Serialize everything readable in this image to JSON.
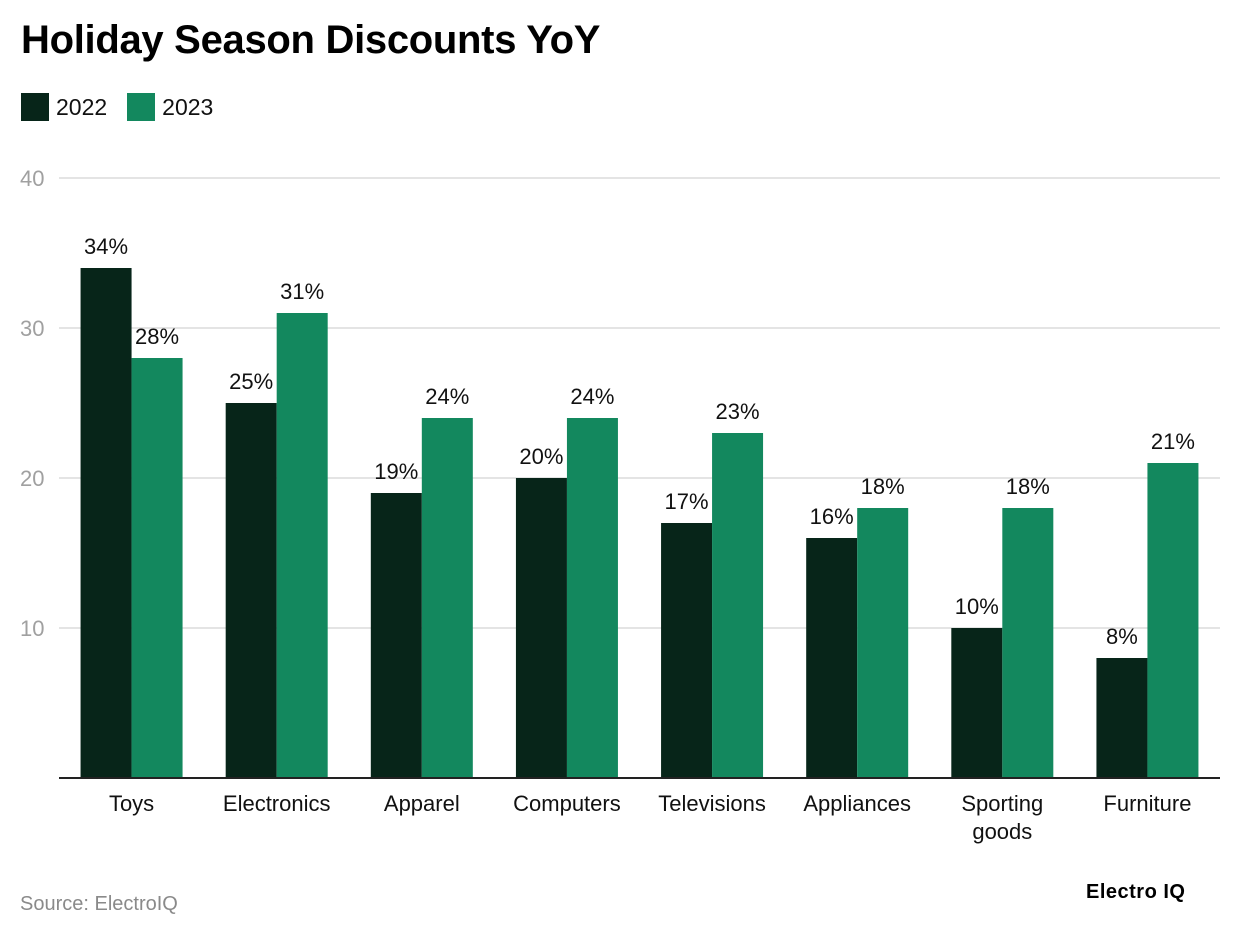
{
  "title": "Holiday Season Discounts YoY",
  "source": "Source: ElectroIQ",
  "brand": "Electro IQ",
  "colors": {
    "series_2022": "#072519",
    "series_2023": "#13885e",
    "grid": "#dcdcdc",
    "axis": "#222222",
    "tick": "#a0a0a0"
  },
  "chart_data": {
    "type": "bar",
    "title": "Holiday Season Discounts YoY",
    "xlabel": "",
    "ylabel": "",
    "ylim": [
      0,
      40
    ],
    "yticks": [
      10,
      20,
      30,
      40
    ],
    "grid": true,
    "legend_position": "top-left",
    "categories": [
      "Toys",
      "Electronics",
      "Apparel",
      "Computers",
      "Televisions",
      "Appliances",
      "Sporting goods",
      "Furniture"
    ],
    "series": [
      {
        "name": "2022",
        "values": [
          34,
          25,
          19,
          20,
          17,
          16,
          10,
          8
        ],
        "labels": [
          "34%",
          "25%",
          "19%",
          "20%",
          "17%",
          "16%",
          "10%",
          "8%"
        ]
      },
      {
        "name": "2023",
        "values": [
          28,
          31,
          24,
          24,
          23,
          18,
          18,
          21
        ],
        "labels": [
          "28%",
          "31%",
          "24%",
          "24%",
          "23%",
          "18%",
          "18%",
          "21%"
        ]
      }
    ]
  }
}
